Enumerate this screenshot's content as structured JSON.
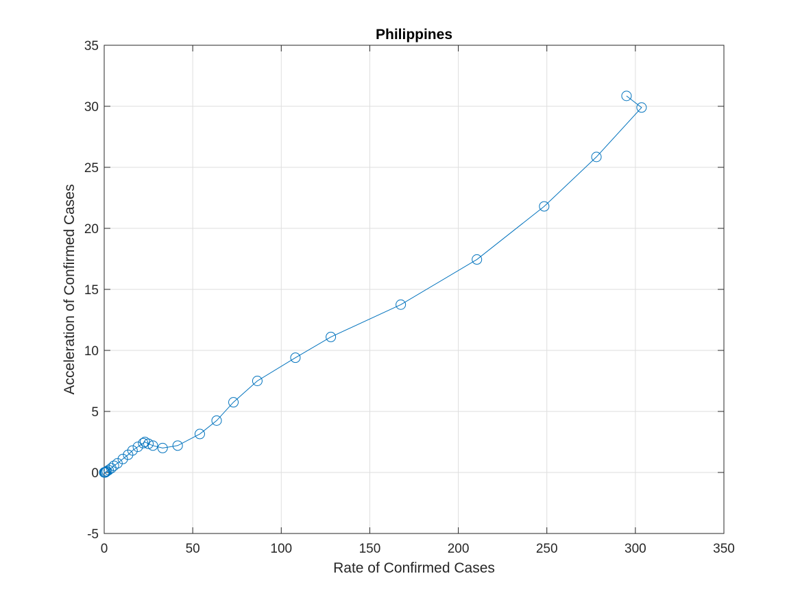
{
  "colors": {
    "series": "#0072BD",
    "grid": "#dedede",
    "axis": "#262626",
    "background": "#ffffff"
  },
  "chart_data": {
    "type": "line",
    "title": "Philippines",
    "xlabel": "Rate of Confirmed Cases",
    "ylabel": "Acceleration of Confirmed Cases",
    "xlim": [
      0,
      350
    ],
    "ylim": [
      -5,
      35
    ],
    "xticks": [
      0,
      50,
      100,
      150,
      200,
      250,
      300,
      350
    ],
    "yticks": [
      -5,
      0,
      5,
      10,
      15,
      20,
      25,
      30,
      35
    ],
    "grid": true,
    "marker": "circle",
    "series": [
      {
        "x": [
          0,
          0.1,
          0.3,
          0.6,
          1,
          1.5,
          2.5,
          4,
          5.5,
          7.5,
          10.5,
          13.5,
          16,
          19,
          22,
          23,
          25,
          27.5,
          33,
          41.5,
          54,
          63.5,
          73,
          86.5,
          108,
          128,
          167.5,
          210.5,
          248.5,
          278,
          303.5,
          295
        ],
        "y": [
          0,
          0,
          0,
          0,
          0.05,
          0.1,
          0.2,
          0.35,
          0.55,
          0.75,
          1.1,
          1.45,
          1.8,
          2.1,
          2.4,
          2.5,
          2.35,
          2.2,
          2.0,
          2.2,
          3.15,
          4.25,
          5.75,
          7.5,
          9.4,
          11.1,
          13.75,
          17.45,
          21.8,
          25.85,
          29.9,
          30.85
        ]
      }
    ]
  }
}
